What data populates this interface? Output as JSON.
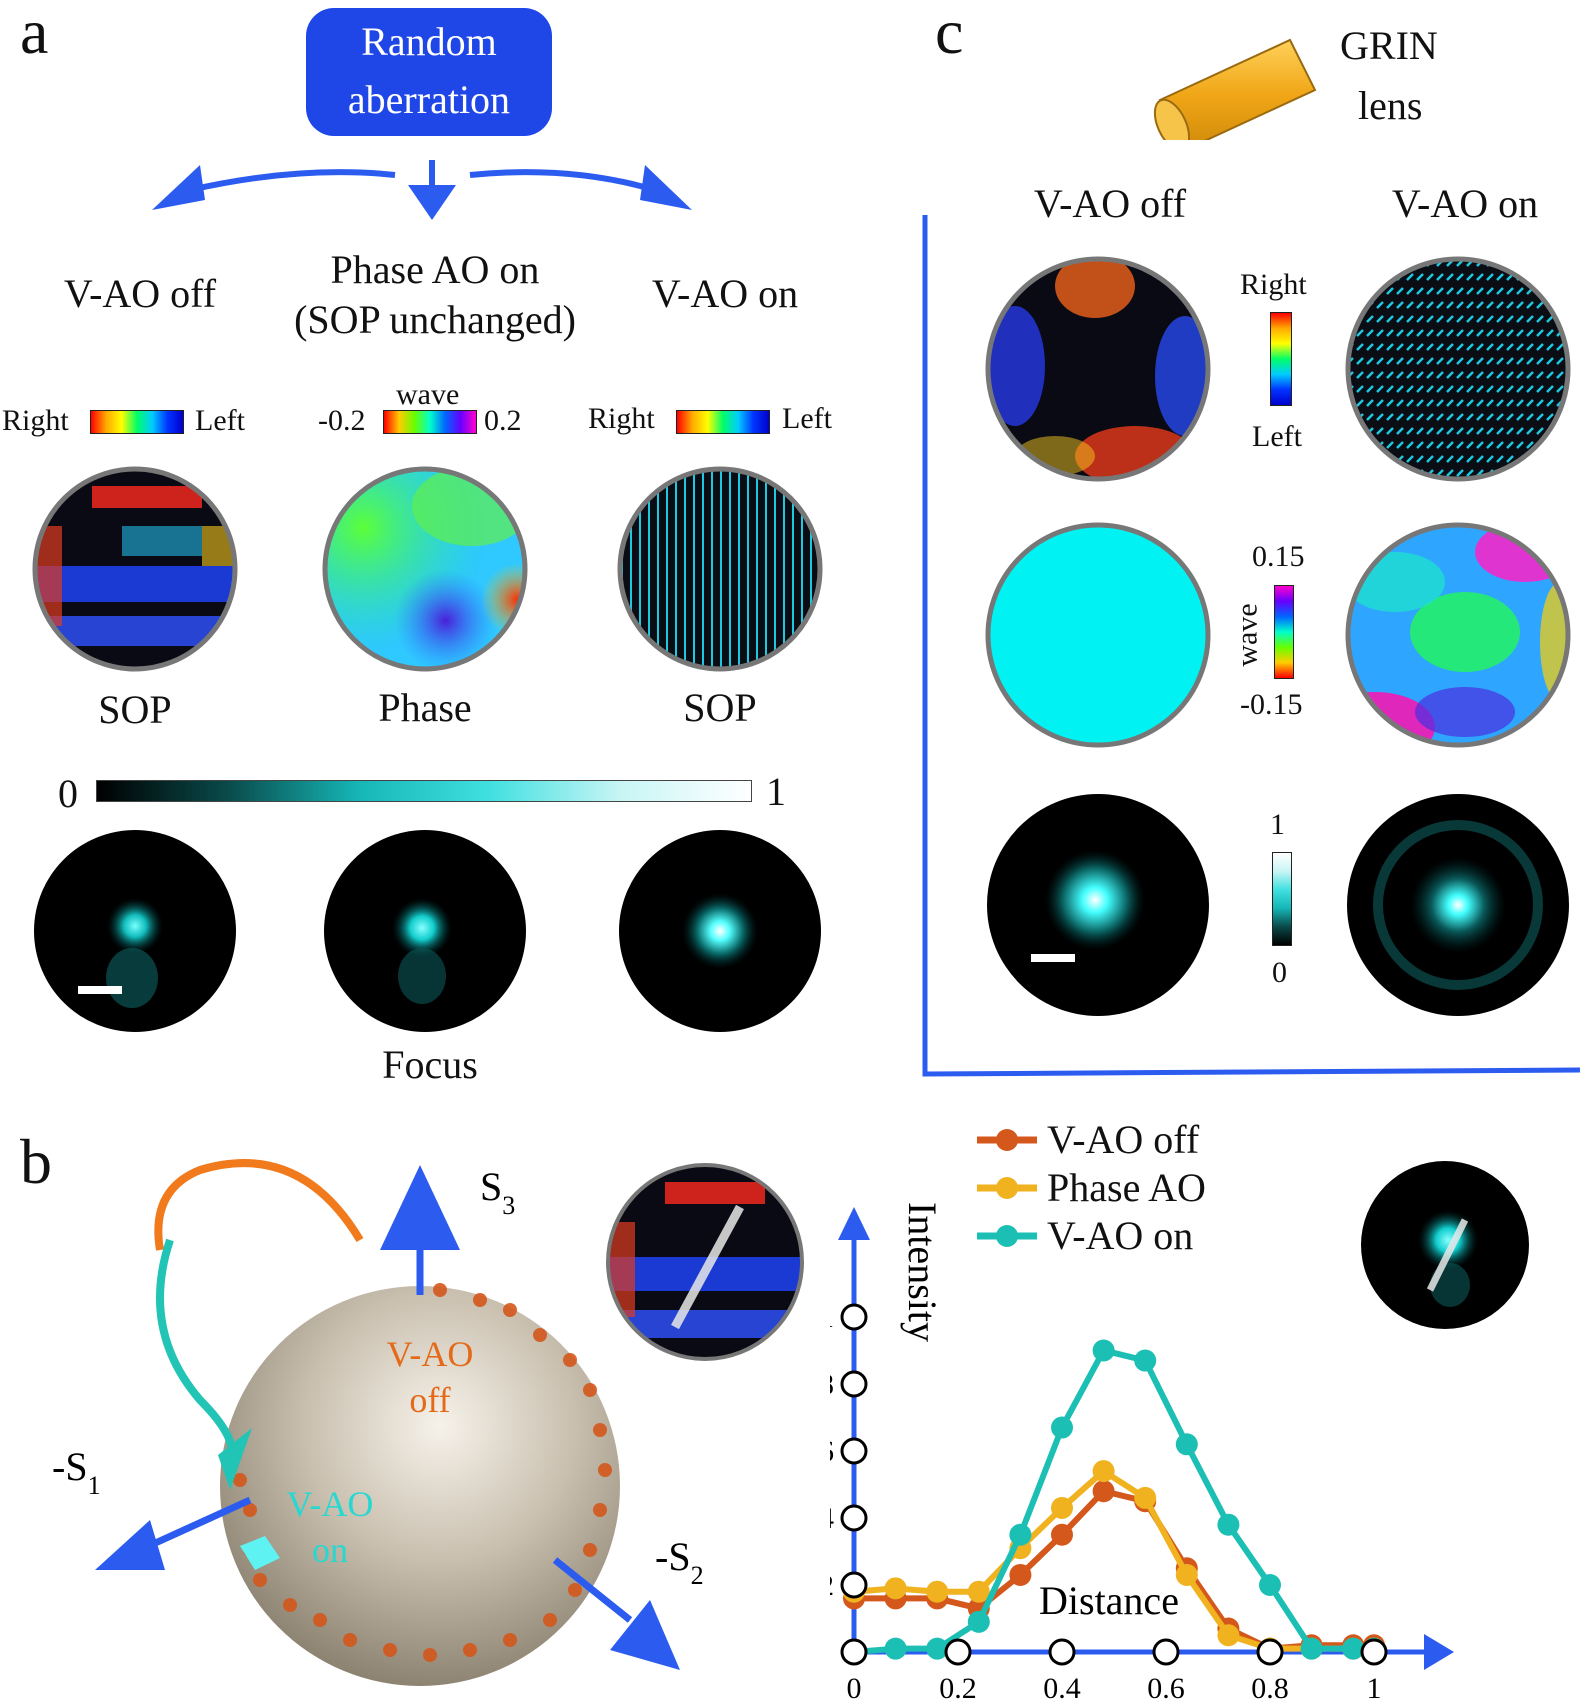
{
  "panel_a": {
    "letter": "a",
    "top_box": [
      "Random",
      "aberration"
    ],
    "col_titles": {
      "left": "V-AO off",
      "middle": [
        "Phase AO on",
        "(SOP unchanged)"
      ],
      "right": "V-AO on"
    },
    "sop_bar": {
      "left_label": "Right",
      "right_label": "Left"
    },
    "phase_bar": {
      "unit": "wave",
      "min": "-0.2",
      "max": "0.2"
    },
    "row_labels": [
      "SOP",
      "Phase",
      "SOP"
    ],
    "focus_bar": {
      "min": "0",
      "max": "1"
    },
    "focus_label": "Focus"
  },
  "panel_b": {
    "letter": "b",
    "axes": {
      "s3": "S",
      "s3_sub": "3",
      "s1": "-S",
      "s1_sub": "1",
      "s2": "-S",
      "s2_sub": "2"
    },
    "sphere_labels": {
      "off": [
        "V-AO",
        "off"
      ],
      "on": [
        "V-AO",
        "on"
      ]
    }
  },
  "panel_c": {
    "letter": "c",
    "lens": [
      "GRIN",
      "lens"
    ],
    "col_titles": [
      "V-AO off",
      "V-AO on"
    ],
    "sop_bar": {
      "top": "Right",
      "bottom": "Left"
    },
    "phase_bar": {
      "max": "0.15",
      "min": "-0.15",
      "unit": "wave"
    },
    "focus_bar": {
      "max": "1",
      "min": "0"
    }
  },
  "chart_data": {
    "type": "line",
    "title": "",
    "xlabel": "Distance",
    "ylabel": "Intensity",
    "xlim": [
      0,
      1
    ],
    "ylim": [
      0,
      1
    ],
    "x_ticks": [
      "0",
      "0.2",
      "0.4",
      "0.6",
      "0.8",
      "1"
    ],
    "y_ticks": [
      "0.2",
      "0.4",
      "0.6",
      "0.8",
      "1"
    ],
    "legend_position": "top-left",
    "x": [
      0,
      0.08,
      0.16,
      0.24,
      0.32,
      0.4,
      0.48,
      0.56,
      0.64,
      0.72,
      0.8,
      0.88,
      0.96,
      1.0
    ],
    "series": [
      {
        "name": "V-AO off",
        "color": "#d4571c",
        "values": [
          0.16,
          0.16,
          0.16,
          0.13,
          0.23,
          0.35,
          0.48,
          0.45,
          0.25,
          0.07,
          0.01,
          0.02,
          0.02,
          0.02
        ]
      },
      {
        "name": "Phase AO",
        "color": "#f0b21e",
        "values": [
          0.18,
          0.19,
          0.18,
          0.18,
          0.31,
          0.43,
          0.54,
          0.46,
          0.23,
          0.05,
          0.01,
          0.01,
          0.01,
          0.01
        ]
      },
      {
        "name": "V-AO on",
        "color": "#1bbfb3",
        "values": [
          0.0,
          0.01,
          0.01,
          0.09,
          0.35,
          0.67,
          0.9,
          0.87,
          0.62,
          0.38,
          0.2,
          0.01,
          0.01,
          0.01
        ]
      }
    ]
  }
}
